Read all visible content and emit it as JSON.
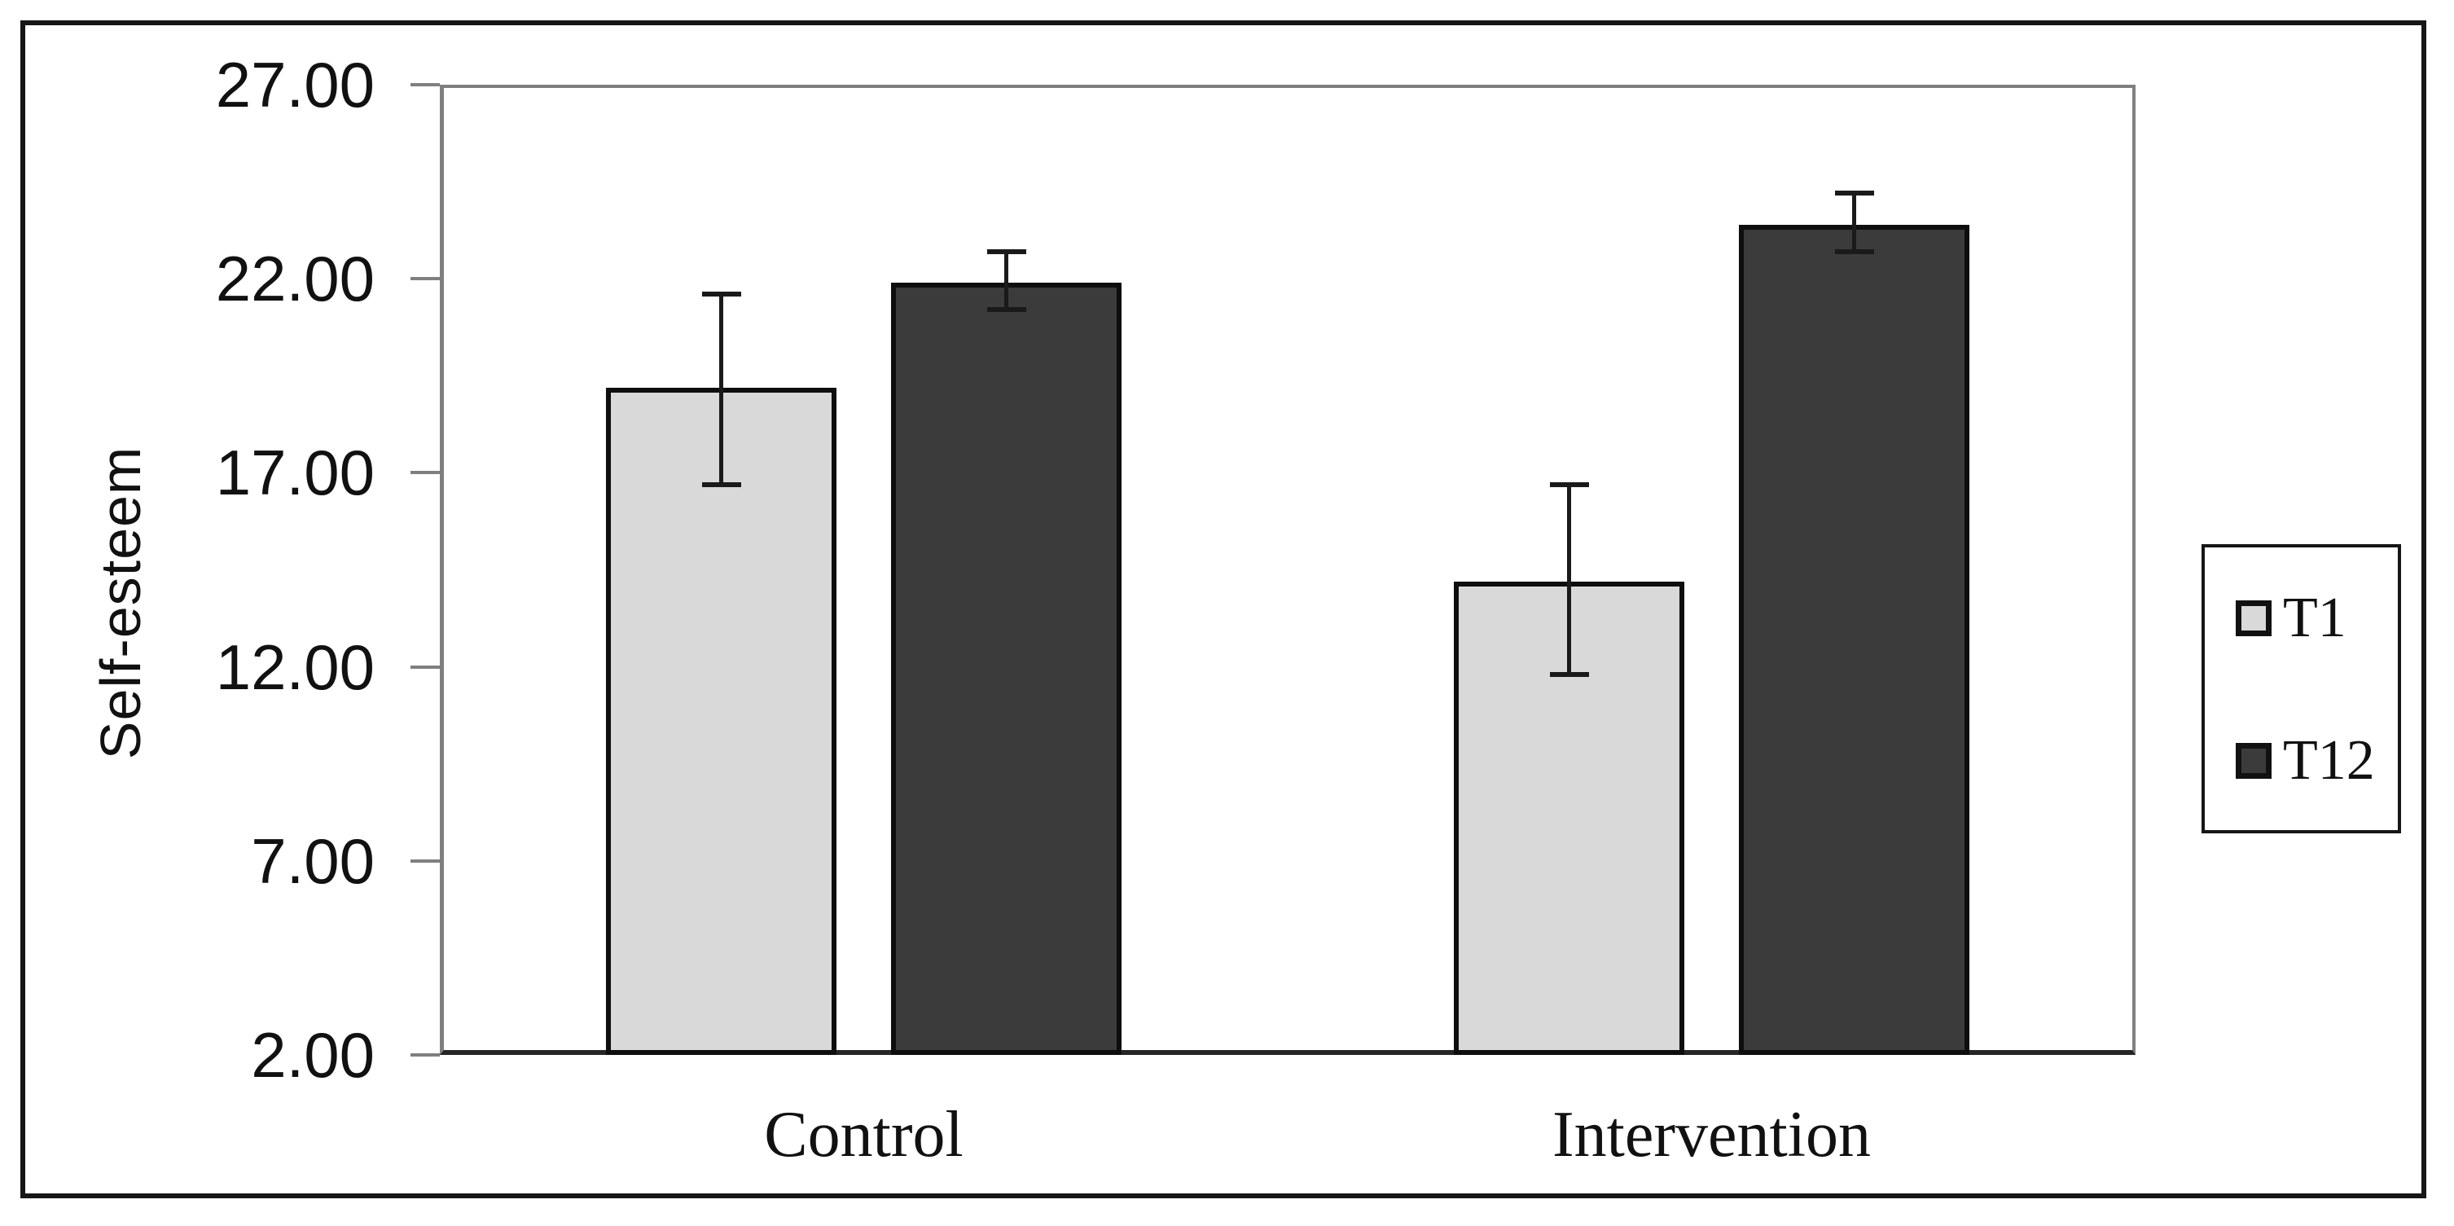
{
  "window": {
    "background": "#ffffff",
    "frame_color": "#161616"
  },
  "chart_data": {
    "type": "bar",
    "title": "",
    "ylabel": "Self-esteem",
    "xlabel": "",
    "categories": [
      "Control",
      "Intervention"
    ],
    "series": [
      {
        "name": "T1",
        "color": "#d9d9d9",
        "values": [
          19.2,
          14.2
        ],
        "error_low": [
          16.7,
          11.8
        ],
        "error_high": [
          21.6,
          16.7
        ]
      },
      {
        "name": "T12",
        "color": "#3b3b3b",
        "values": [
          21.9,
          23.4
        ],
        "error_low": [
          21.2,
          22.7
        ],
        "error_high": [
          22.7,
          24.2
        ]
      }
    ],
    "y_axis": {
      "min": 2,
      "max": 27,
      "tick_step": 5,
      "tick_labels": [
        "27.00",
        "22.00",
        "17.00",
        "12.00",
        "7.00",
        "2.00"
      ]
    },
    "x_axis": {
      "labels": [
        "Control",
        "Intervention"
      ]
    },
    "legend": {
      "position": "right",
      "items": [
        {
          "label": "T1",
          "color": "#d9d9d9"
        },
        {
          "label": "T12",
          "color": "#3b3b3b"
        }
      ]
    },
    "grid": false,
    "error_bars": true,
    "axis_color": "#7f7f7f",
    "baseline_color": "#262626",
    "error_bar_color": "#1a1a1a",
    "bar_border_color": "#0e0e0e"
  }
}
